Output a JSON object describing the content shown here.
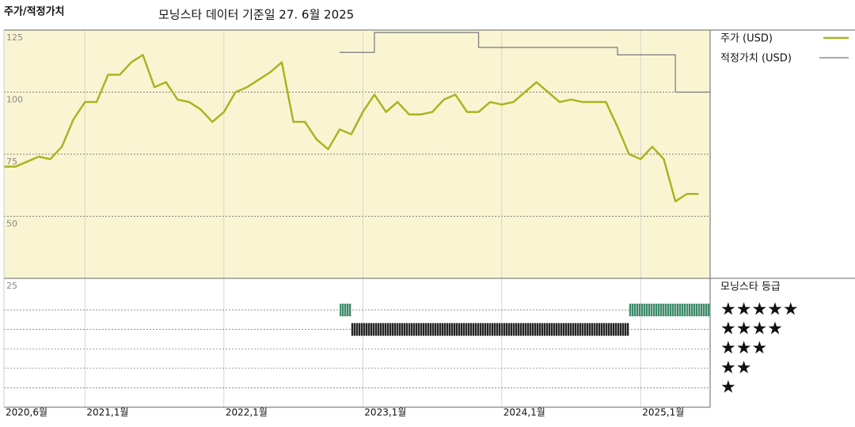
{
  "chart_data": {
    "type": "line",
    "title": "주가/적정가치",
    "subtitle": "모닝스타 데이터 기준일 27. 6월 2025",
    "x": [
      "2020-06",
      "2020-07",
      "2020-08",
      "2020-09",
      "2020-10",
      "2020-11",
      "2020-12",
      "2021-01",
      "2021-02",
      "2021-03",
      "2021-04",
      "2021-05",
      "2021-06",
      "2021-07",
      "2021-08",
      "2021-09",
      "2021-10",
      "2021-11",
      "2021-12",
      "2022-01",
      "2022-02",
      "2022-03",
      "2022-04",
      "2022-05",
      "2022-06",
      "2022-07",
      "2022-08",
      "2022-09",
      "2022-10",
      "2022-11",
      "2022-12",
      "2023-01",
      "2023-02",
      "2023-03",
      "2023-04",
      "2023-05",
      "2023-06",
      "2023-07",
      "2023-08",
      "2023-09",
      "2023-10",
      "2023-11",
      "2023-12",
      "2024-01",
      "2024-02",
      "2024-03",
      "2024-04",
      "2024-05",
      "2024-06",
      "2024-07",
      "2024-08",
      "2024-09",
      "2024-10",
      "2024-11",
      "2024-12",
      "2025-01",
      "2025-02",
      "2025-03",
      "2025-04",
      "2025-05",
      "2025-06"
    ],
    "xlim": [
      "2020-06",
      "2025-07"
    ],
    "xticks": [
      {
        "value": "2020-06",
        "label": "2020,6월"
      },
      {
        "value": "2021-01",
        "label": "2021,1월"
      },
      {
        "value": "2022-01",
        "label": "2022,1월"
      },
      {
        "value": "2023-01",
        "label": "2023,1월"
      },
      {
        "value": "2024-01",
        "label": "2024,1월"
      },
      {
        "value": "2025-01",
        "label": "2025,1월"
      }
    ],
    "ylim": [
      25,
      125
    ],
    "yticks": [
      25,
      50,
      75,
      100,
      125
    ],
    "grid": true,
    "series": [
      {
        "name": "주가 (USD)",
        "color": "#aab420",
        "values": [
          70,
          70,
          72,
          74,
          73,
          78,
          89,
          96,
          96,
          107,
          107,
          112,
          115,
          102,
          104,
          97,
          96,
          93,
          88,
          92,
          100,
          102,
          105,
          108,
          112,
          88,
          88,
          81,
          77,
          85,
          83,
          92,
          99,
          92,
          96,
          91,
          91,
          92,
          97,
          99,
          92,
          92,
          96,
          95,
          96,
          100,
          104,
          100,
          96,
          97,
          96,
          96,
          96,
          86,
          75,
          73,
          78,
          73,
          56,
          59,
          59
        ]
      },
      {
        "name": "적정가치 (USD)",
        "color": "#777777",
        "step": true,
        "values": [
          null,
          null,
          null,
          null,
          null,
          null,
          null,
          null,
          null,
          null,
          null,
          null,
          null,
          null,
          null,
          null,
          null,
          null,
          null,
          null,
          null,
          null,
          null,
          null,
          null,
          null,
          null,
          null,
          null,
          116,
          116,
          116,
          124,
          124,
          124,
          124,
          124,
          124,
          124,
          124,
          124,
          118,
          118,
          118,
          118,
          118,
          118,
          118,
          118,
          118,
          118,
          118,
          118,
          115,
          115,
          115,
          115,
          115,
          100,
          100,
          100
        ]
      }
    ],
    "rating": {
      "title": "모닝스타 등급",
      "levels": [
        "★",
        "★★",
        "★★★",
        "★★★★",
        "★★★★★"
      ],
      "colors": {
        "4": "#222222",
        "5": "#3d8a6a"
      },
      "values": [
        null,
        null,
        null,
        null,
        null,
        null,
        null,
        null,
        null,
        null,
        null,
        null,
        null,
        null,
        null,
        null,
        null,
        null,
        null,
        null,
        null,
        null,
        null,
        null,
        null,
        null,
        null,
        null,
        null,
        5,
        4,
        4,
        4,
        4,
        4,
        4,
        4,
        4,
        4,
        4,
        4,
        4,
        4,
        4,
        4,
        4,
        4,
        4,
        4,
        4,
        4,
        4,
        4,
        4,
        5,
        5,
        5,
        5,
        5,
        5,
        5
      ]
    }
  }
}
